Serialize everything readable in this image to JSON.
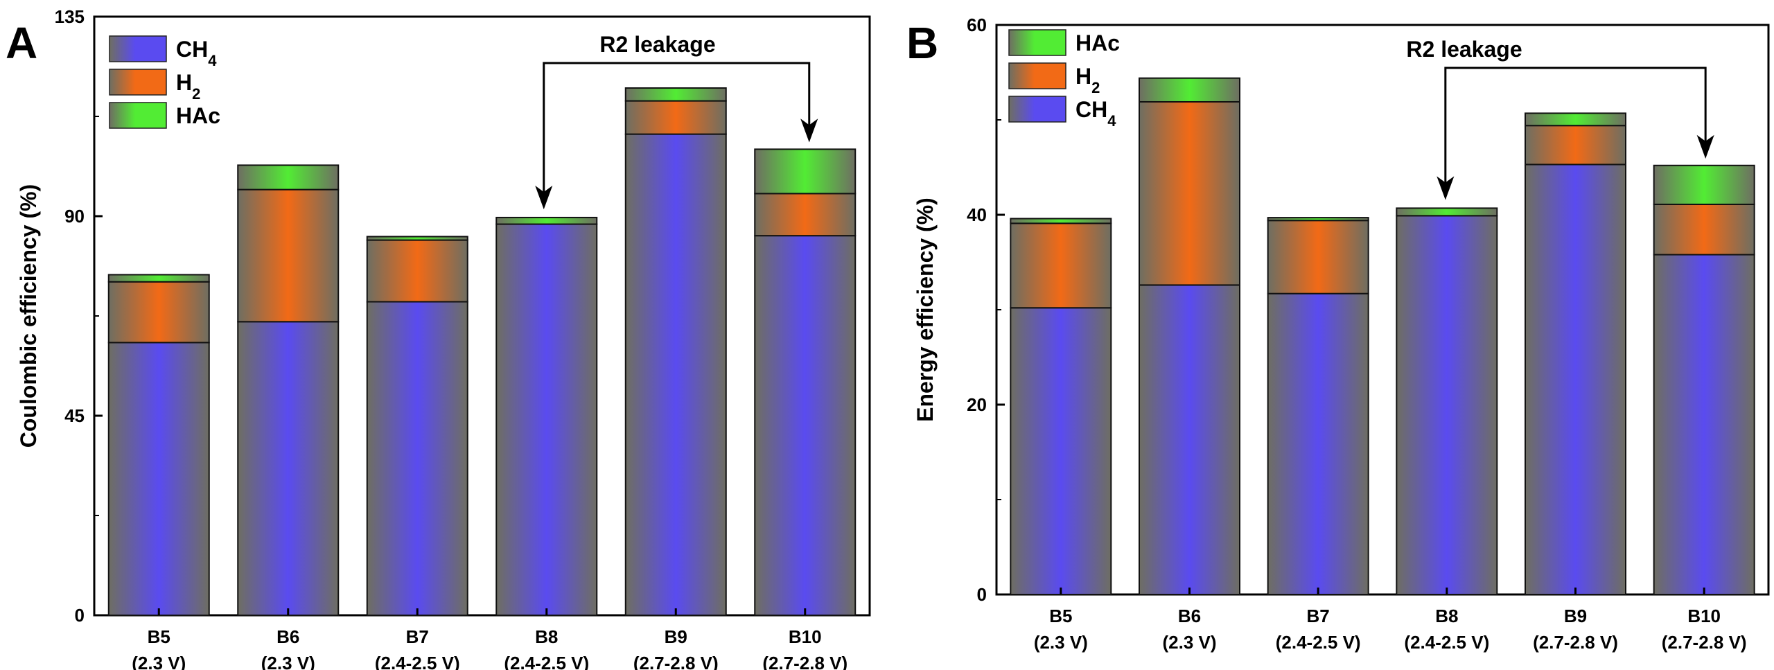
{
  "colors": {
    "CH4": "#5a4bf0",
    "H2": "#f26a16",
    "HAc": "#52ec34",
    "edge_dark": "#6e6e62"
  },
  "chart_data": [
    {
      "panel": "A",
      "type": "bar",
      "stacked": true,
      "ylabel": "Coulombic efficiency (%)",
      "ylim": [
        0,
        135
      ],
      "yticks": [
        0,
        45,
        90,
        135
      ],
      "categories": [
        "B5\n(2.3 V)",
        "B6\n(2.3 V)",
        "B7\n(2.4-2.5 V)",
        "B8\n(2.4-2.5 V)",
        "B9\n(2.7-2.8 V)",
        "B10\n(2.7-2.8 V)"
      ],
      "series": [
        {
          "name": "CH4",
          "name_main": "CH",
          "name_sub": "4",
          "values": [
            61.5,
            66.2,
            70.7,
            88.2,
            108.5,
            85.6
          ]
        },
        {
          "name": "H2",
          "name_main": "H",
          "name_sub": "2",
          "values": [
            13.7,
            29.8,
            13.9,
            0.0,
            7.5,
            9.5
          ]
        },
        {
          "name": "HAc",
          "name_main": "HAc",
          "name_sub": "",
          "values": [
            1.6,
            5.5,
            0.8,
            1.5,
            2.9,
            10.0
          ]
        }
      ],
      "legend": {
        "position": "top-left",
        "order": [
          "CH4",
          "H2",
          "HAc"
        ]
      },
      "annotation": {
        "text": "R2 leakage",
        "from": "B8",
        "to": "B10"
      }
    },
    {
      "panel": "B",
      "type": "bar",
      "stacked": true,
      "ylabel": "Energy efficiency (%)",
      "ylim": [
        0,
        60
      ],
      "yticks": [
        0,
        20,
        40,
        60
      ],
      "categories": [
        "B5\n(2.3 V)",
        "B6\n(2.3 V)",
        "B7\n(2.4-2.5 V)",
        "B8\n(2.4-2.5 V)",
        "B9\n(2.7-2.8 V)",
        "B10\n(2.7-2.8 V)"
      ],
      "series": [
        {
          "name": "CH4",
          "name_main": "CH",
          "name_sub": "4",
          "values": [
            30.2,
            32.6,
            31.7,
            39.9,
            45.3,
            35.8
          ]
        },
        {
          "name": "H2",
          "name_main": "H",
          "name_sub": "2",
          "values": [
            8.9,
            19.3,
            7.7,
            0.0,
            4.1,
            5.3
          ]
        },
        {
          "name": "HAc",
          "name_main": "HAc",
          "name_sub": "",
          "values": [
            0.5,
            2.5,
            0.3,
            0.8,
            1.3,
            4.1
          ]
        }
      ],
      "legend": {
        "position": "top-left",
        "order": [
          "HAc",
          "H2",
          "CH4"
        ]
      },
      "annotation": {
        "text": "R2 leakage",
        "from": "B8",
        "to": "B10"
      }
    }
  ]
}
